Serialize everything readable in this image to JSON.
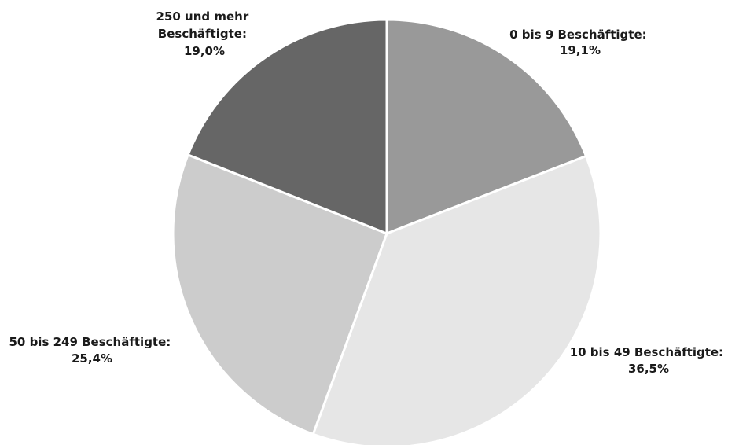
{
  "chart_data": {
    "type": "pie",
    "title": "",
    "slices": [
      {
        "label": "0 bis 9 Beschäftigte:",
        "value": 19.1,
        "value_label": "19,1%",
        "color": "#999999"
      },
      {
        "label": "10 bis 49 Beschäftigte:",
        "value": 36.5,
        "value_label": "36,5%",
        "color": "#e6e6e6"
      },
      {
        "label": "50 bis 249 Beschäftigte:",
        "value": 25.4,
        "value_label": "25,4%",
        "color": "#cccccc"
      },
      {
        "label_lines": [
          "250 und mehr",
          "Beschäftigte:"
        ],
        "value": 19.0,
        "value_label": "19,0%",
        "color": "#666666"
      }
    ],
    "start": "12 o'clock",
    "direction": "clockwise",
    "legend": "none"
  }
}
